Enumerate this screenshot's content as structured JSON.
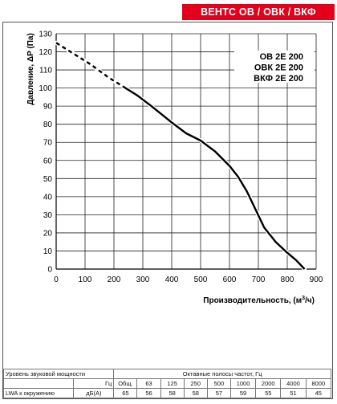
{
  "header": {
    "title": "ВЕНТС ОВ / ОВК / ВКФ"
  },
  "chart_data": {
    "type": "line",
    "ylabel": "Давление, ΔP (Па)",
    "xlabel": "Производительность, (м³/ч)",
    "xlim": [
      0,
      900
    ],
    "ylim": [
      0,
      130
    ],
    "x_ticks": [
      "0",
      "100",
      "200",
      "300",
      "400",
      "500",
      "600",
      "700",
      "800",
      "900"
    ],
    "y_ticks": [
      "0",
      "10",
      "20",
      "30",
      "40",
      "50",
      "60",
      "70",
      "80",
      "90",
      "100",
      "110",
      "120",
      "130"
    ],
    "grid": true,
    "models": [
      "ОВ 2Е 200",
      "ОВК 2Е 200",
      "ВКФ 2Е 200"
    ],
    "series": [
      {
        "style": "dashed",
        "x": [
          0,
          60,
          120,
          180,
          230
        ],
        "y": [
          125,
          119,
          113,
          106,
          101
        ]
      },
      {
        "style": "solid",
        "x": [
          230,
          280,
          330,
          400,
          450,
          500,
          550,
          600,
          630,
          660,
          690,
          720,
          760,
          800,
          830,
          860
        ],
        "y": [
          101,
          96,
          90,
          81,
          75,
          71,
          65,
          57,
          51,
          43,
          33,
          23,
          15,
          9,
          5,
          0
        ]
      }
    ]
  },
  "sound_table": {
    "r1_left": "Уровень звуковой мощности",
    "r1_right": "Октавные полосы частот, Гц",
    "r2_unit": "Гц",
    "r2_total": "Общ.",
    "freqs": [
      "63",
      "125",
      "250",
      "500",
      "1000",
      "2000",
      "4000",
      "8000"
    ],
    "r3_label": "LWA к окружению",
    "r3_unit": "дБ(А)",
    "r3_total": "65",
    "values": [
      "56",
      "58",
      "58",
      "57",
      "59",
      "55",
      "51",
      "45"
    ]
  }
}
